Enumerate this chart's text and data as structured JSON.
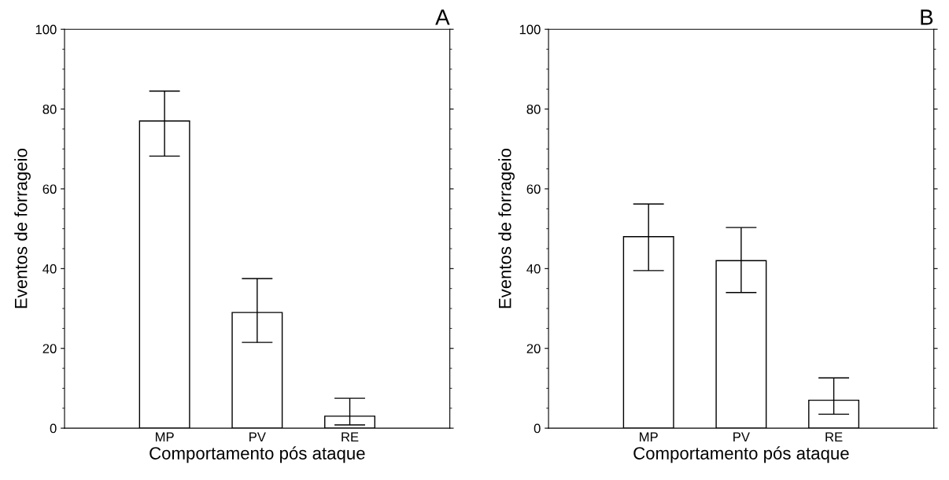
{
  "chart_data": [
    {
      "type": "bar",
      "title": "A",
      "xlabel": "Comportamento pós ataque",
      "ylabel": "Eventos de forrageio",
      "categories": [
        "MP",
        "PV",
        "RE"
      ],
      "values": [
        77,
        29,
        3
      ],
      "errors": [
        [
          68.2,
          84.5
        ],
        [
          21.5,
          37.5
        ],
        [
          0.8,
          7.5
        ]
      ],
      "color": "#ffffff",
      "ylim": [
        0,
        100
      ],
      "yticks": [
        0,
        20,
        40,
        60,
        80,
        100
      ],
      "grid": false
    },
    {
      "type": "bar",
      "title": "B",
      "xlabel": "Comportamento pós ataque",
      "ylabel": "Eventos de forrageio",
      "categories": [
        "MP",
        "PV",
        "RE"
      ],
      "values": [
        48,
        42,
        7
      ],
      "errors": [
        [
          39.5,
          56.2
        ],
        [
          34,
          50.3
        ],
        [
          3.5,
          12.6
        ]
      ],
      "color": "#ffffff",
      "ylim": [
        0,
        100
      ],
      "yticks": [
        0,
        20,
        40,
        60,
        80,
        100
      ],
      "grid": false
    }
  ]
}
